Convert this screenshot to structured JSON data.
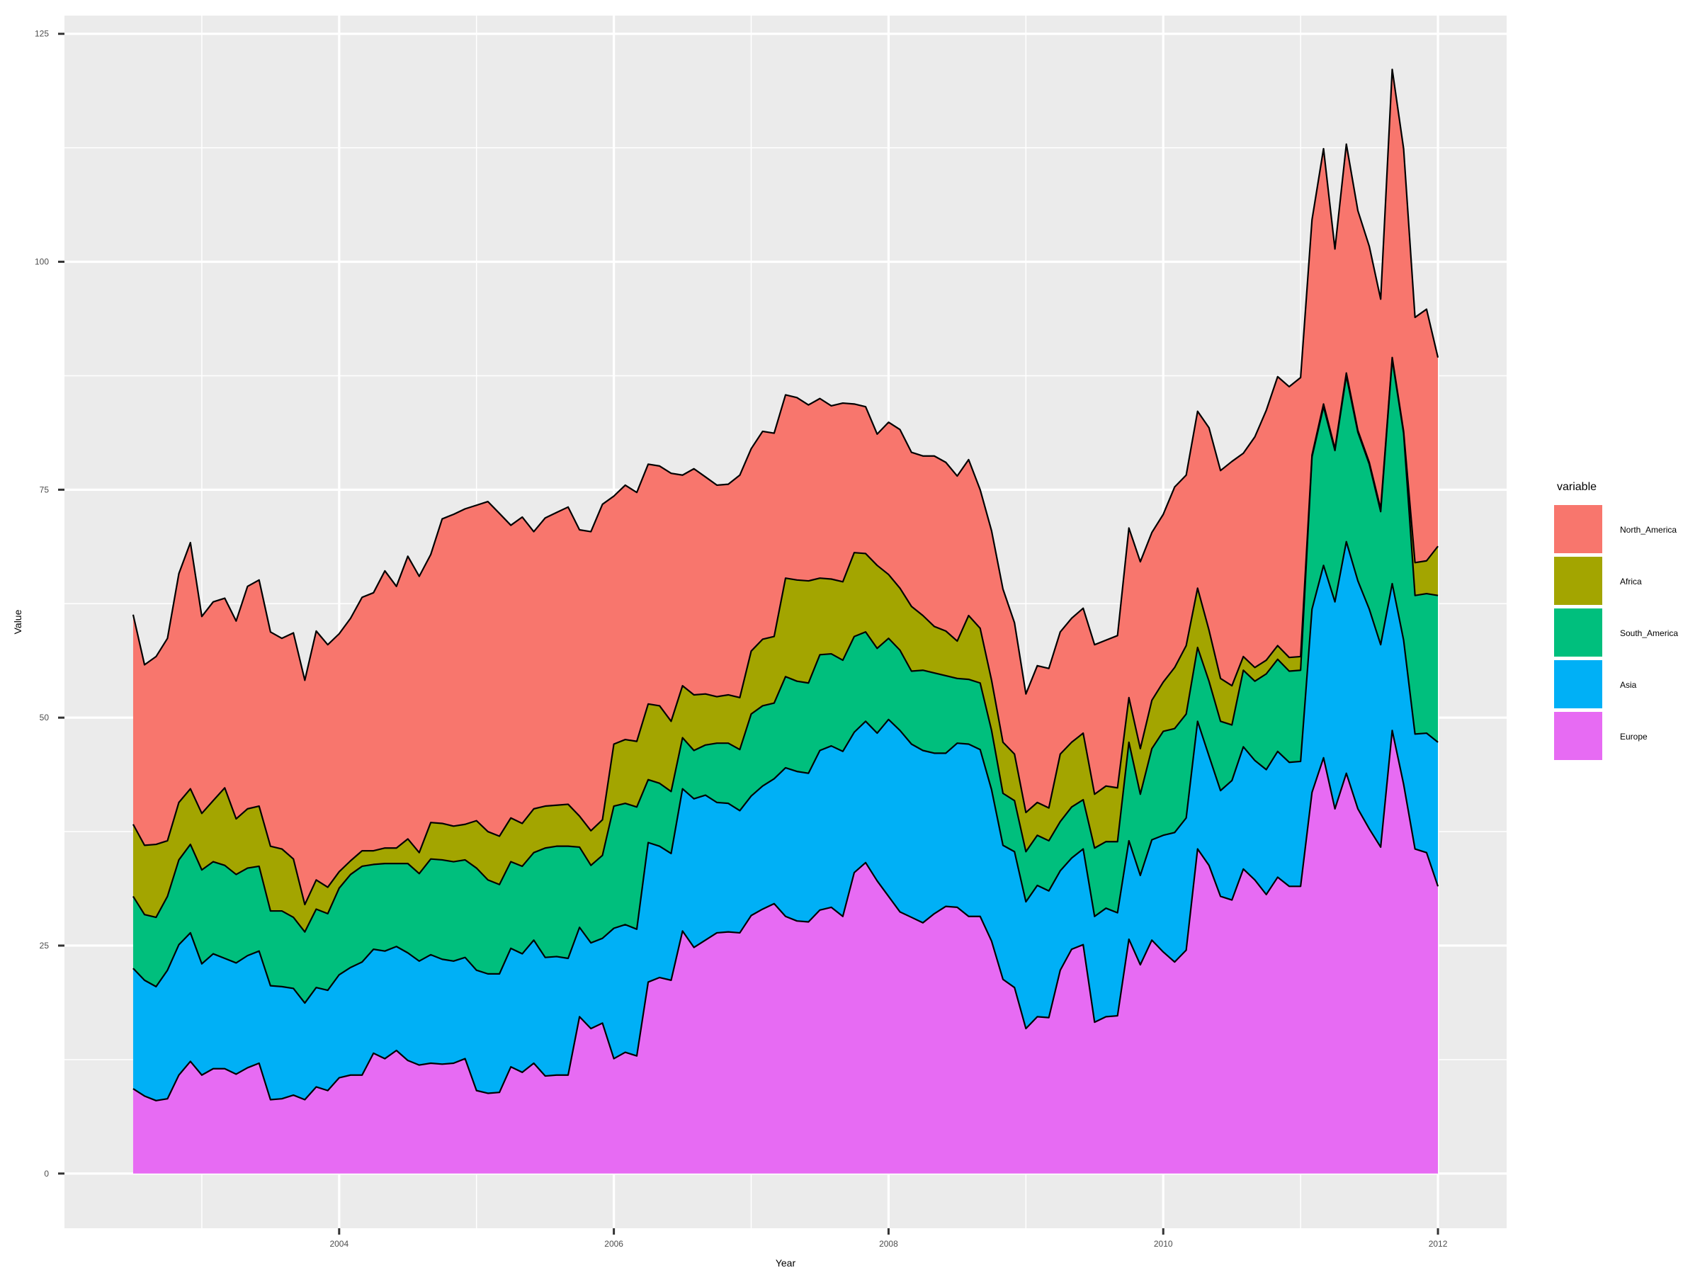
{
  "chart_data": {
    "type": "area",
    "stacked": true,
    "title": "",
    "xlabel": "Year",
    "ylabel": "Value",
    "x_ticks": [
      "2004",
      "2006",
      "2008",
      "2010",
      "2012"
    ],
    "y_ticks": [
      "0",
      "25",
      "50",
      "75",
      "100",
      "125"
    ],
    "xlim": [
      2002.0,
      2012.5
    ],
    "ylim": [
      -6,
      127
    ],
    "grid": true,
    "legend": {
      "title": "variable",
      "position": "right"
    },
    "x": [
      2002.5,
      2002.583,
      2002.667,
      2002.75,
      2002.833,
      2002.917,
      2003.0,
      2003.083,
      2003.167,
      2003.25,
      2003.333,
      2003.417,
      2003.5,
      2003.583,
      2003.667,
      2003.75,
      2003.833,
      2003.917,
      2004.0,
      2004.083,
      2004.167,
      2004.25,
      2004.333,
      2004.417,
      2004.5,
      2004.583,
      2004.667,
      2004.75,
      2004.833,
      2004.917,
      2005.0,
      2005.083,
      2005.167,
      2005.25,
      2005.333,
      2005.417,
      2005.5,
      2005.583,
      2005.667,
      2005.75,
      2005.833,
      2005.917,
      2006.0,
      2006.083,
      2006.167,
      2006.25,
      2006.333,
      2006.417,
      2006.5,
      2006.583,
      2006.667,
      2006.75,
      2006.833,
      2006.917,
      2007.0,
      2007.083,
      2007.167,
      2007.25,
      2007.333,
      2007.417,
      2007.5,
      2007.583,
      2007.667,
      2007.75,
      2007.833,
      2007.917,
      2008.0,
      2008.083,
      2008.167,
      2008.25,
      2008.333,
      2008.417,
      2008.5,
      2008.583,
      2008.667,
      2008.75,
      2008.833,
      2008.917,
      2009.0,
      2009.083,
      2009.167,
      2009.25,
      2009.333,
      2009.417,
      2009.5,
      2009.583,
      2009.667,
      2009.75,
      2009.833,
      2009.917,
      2010.0,
      2010.083,
      2010.167,
      2010.25,
      2010.333,
      2010.417,
      2010.5,
      2010.583,
      2010.667,
      2010.75,
      2010.833,
      2010.917,
      2011.0,
      2011.083,
      2011.167,
      2011.25,
      2011.333,
      2011.417,
      2011.5,
      2011.583,
      2011.667,
      2011.75,
      2011.833,
      2011.917,
      2012.0
    ],
    "series": [
      {
        "name": "Europe",
        "color": "#E76BF3",
        "values": [
          9.3,
          8.5,
          8.0,
          8.2,
          10.8,
          12.3,
          10.8,
          11.5,
          11.5,
          10.9,
          11.6,
          12.1,
          8.1,
          8.2,
          8.6,
          8.1,
          9.5,
          9.1,
          10.5,
          10.8,
          10.8,
          13.2,
          12.6,
          13.5,
          12.4,
          11.9,
          12.1,
          12.0,
          12.1,
          12.6,
          9.1,
          8.8,
          8.9,
          11.7,
          11.1,
          12.1,
          10.7,
          10.8,
          10.8,
          17.2,
          15.9,
          16.5,
          12.6,
          13.3,
          12.9,
          21.0,
          21.5,
          21.2,
          26.6,
          24.8,
          25.6,
          26.4,
          26.5,
          26.4,
          28.3,
          29.0,
          29.6,
          28.2,
          27.7,
          27.6,
          28.9,
          29.2,
          28.2,
          33.0,
          34.1,
          32.1,
          30.4,
          28.7,
          28.1,
          27.5,
          28.5,
          29.3,
          29.2,
          28.2,
          28.2,
          25.5,
          21.3,
          20.4,
          15.9,
          17.2,
          17.1,
          22.3,
          24.6,
          25.1,
          16.6,
          17.2,
          17.3,
          25.7,
          22.9,
          25.6,
          24.3,
          23.2,
          24.5,
          35.6,
          33.8,
          30.4,
          30.0,
          33.4,
          32.2,
          30.6,
          32.5,
          31.5,
          31.5,
          41.8,
          45.6,
          40.0,
          43.9,
          40.0,
          37.8,
          35.8,
          48.6,
          42.7,
          35.6,
          35.2,
          31.5
        ]
      },
      {
        "name": "Asia",
        "color": "#00B0F6",
        "values": [
          13.2,
          12.7,
          12.5,
          14.1,
          14.3,
          14.1,
          12.2,
          12.6,
          12.1,
          12.2,
          12.3,
          12.3,
          12.5,
          12.3,
          11.7,
          10.6,
          10.9,
          11.0,
          11.3,
          11.8,
          12.4,
          11.4,
          11.8,
          11.4,
          11.8,
          11.4,
          11.9,
          11.5,
          11.2,
          11.1,
          13.2,
          13.1,
          13.0,
          13.0,
          13.0,
          13.5,
          13.0,
          13.0,
          12.8,
          9.8,
          9.4,
          9.3,
          14.3,
          14.0,
          13.9,
          15.3,
          14.4,
          13.9,
          15.6,
          16.3,
          15.9,
          14.3,
          14.1,
          13.4,
          13.1,
          13.5,
          13.7,
          16.3,
          16.4,
          16.3,
          17.5,
          17.7,
          18.1,
          15.4,
          15.5,
          16.2,
          19.4,
          19.9,
          19.0,
          18.9,
          17.6,
          16.8,
          18.0,
          18.9,
          18.3,
          16.6,
          14.7,
          14.9,
          13.9,
          14.4,
          13.9,
          10.9,
          10.0,
          10.5,
          11.6,
          11.9,
          11.3,
          10.8,
          9.8,
          11.0,
          12.8,
          14.2,
          14.5,
          14.0,
          12.0,
          11.6,
          13.1,
          13.4,
          13.1,
          13.7,
          13.8,
          13.6,
          13.7,
          20.1,
          21.1,
          22.7,
          25.4,
          25.0,
          24.1,
          22.2,
          16.1,
          15.8,
          12.6,
          13.1,
          15.8
        ]
      },
      {
        "name": "South_America",
        "color": "#00BF7D",
        "values": [
          7.9,
          7.2,
          7.6,
          8.1,
          9.3,
          9.7,
          10.3,
          10.1,
          10.2,
          9.7,
          9.6,
          9.3,
          8.2,
          8.3,
          7.8,
          7.8,
          8.6,
          8.4,
          9.5,
          10.2,
          10.5,
          9.3,
          9.6,
          9.1,
          9.8,
          9.6,
          10.5,
          10.9,
          10.9,
          10.7,
          11.2,
          10.3,
          9.8,
          9.5,
          9.6,
          9.6,
          12.0,
          12.1,
          12.3,
          8.8,
          8.5,
          9.1,
          13.4,
          13.3,
          13.4,
          6.9,
          6.9,
          6.8,
          5.6,
          5.3,
          5.5,
          6.5,
          6.6,
          6.7,
          9.0,
          8.8,
          8.3,
          10.0,
          9.9,
          9.9,
          10.5,
          10.1,
          10.0,
          10.5,
          9.8,
          9.3,
          8.9,
          8.8,
          8.0,
          8.8,
          8.8,
          8.5,
          7.1,
          7.1,
          7.3,
          6.5,
          5.7,
          5.6,
          5.5,
          5.5,
          5.5,
          5.4,
          5.6,
          5.4,
          7.5,
          7.3,
          7.8,
          10.8,
          8.9,
          10.0,
          11.4,
          11.4,
          11.4,
          8.1,
          8.2,
          7.6,
          6.1,
          8.4,
          8.7,
          10.5,
          10.1,
          10.0,
          10.0,
          16.7,
          17.4,
          16.6,
          18.2,
          16.3,
          15.9,
          14.6,
          24.6,
          22.7,
          15.2,
          15.3,
          16.1
        ]
      },
      {
        "name": "Africa",
        "color": "#A3A500",
        "values": [
          7.9,
          7.6,
          8.0,
          6.1,
          6.3,
          6.1,
          6.2,
          6.7,
          8.5,
          6.1,
          6.5,
          6.6,
          7.1,
          6.8,
          6.4,
          3.0,
          3.2,
          2.9,
          1.8,
          1.5,
          1.7,
          1.5,
          1.7,
          1.7,
          2.7,
          2.3,
          4.0,
          4.0,
          3.9,
          3.9,
          5.2,
          5.3,
          5.3,
          4.8,
          4.7,
          4.8,
          4.6,
          4.5,
          4.6,
          3.4,
          3.8,
          3.9,
          6.8,
          7.0,
          7.2,
          8.3,
          8.5,
          7.7,
          5.7,
          6.1,
          5.6,
          5.1,
          5.3,
          5.7,
          6.9,
          7.3,
          7.3,
          10.8,
          11.1,
          11.2,
          8.4,
          8.2,
          8.6,
          9.2,
          8.6,
          9.1,
          7.0,
          6.8,
          7.1,
          6.0,
          5.1,
          4.9,
          4.1,
          7.0,
          6.0,
          5.5,
          5.6,
          5.1,
          4.3,
          3.6,
          3.6,
          7.4,
          7.1,
          7.3,
          5.9,
          6.1,
          5.9,
          4.9,
          5.0,
          5.3,
          5.4,
          6.7,
          7.5,
          6.5,
          5.6,
          4.7,
          4.3,
          1.5,
          1.5,
          1.5,
          1.5,
          1.5,
          1.5,
          0.2,
          0.3,
          0.2,
          0.3,
          0.2,
          0.2,
          0.3,
          0.2,
          0.2,
          3.6,
          3.6,
          5.4
        ]
      },
      {
        "name": "North_America",
        "color": "#F8766D",
        "values": [
          23.0,
          19.8,
          20.6,
          22.2,
          25.1,
          27.0,
          21.6,
          21.8,
          20.8,
          21.7,
          24.4,
          24.8,
          23.5,
          23.1,
          24.8,
          24.6,
          27.3,
          26.6,
          26.1,
          26.6,
          27.8,
          28.3,
          30.4,
          28.7,
          31.0,
          30.3,
          29.4,
          33.4,
          34.2,
          34.6,
          34.6,
          36.2,
          35.4,
          32.1,
          33.6,
          30.4,
          31.6,
          32.1,
          32.6,
          31.4,
          32.8,
          34.6,
          27.2,
          27.9,
          27.3,
          26.3,
          26.3,
          27.2,
          23.1,
          24.8,
          23.8,
          23.2,
          23.1,
          24.4,
          22.2,
          22.8,
          22.3,
          20.1,
          20.0,
          19.3,
          19.7,
          19.0,
          19.6,
          16.3,
          16.1,
          14.4,
          16.7,
          17.4,
          16.9,
          17.5,
          18.7,
          18.5,
          18.1,
          17.1,
          15.2,
          16.4,
          16.8,
          14.4,
          13.0,
          15.0,
          15.3,
          13.4,
          13.6,
          13.7,
          16.4,
          16.0,
          16.7,
          18.6,
          20.5,
          18.4,
          18.4,
          19.8,
          18.7,
          19.4,
          22.2,
          22.8,
          24.6,
          22.3,
          25.3,
          27.4,
          29.5,
          29.7,
          30.6,
          25.8,
          28.0,
          21.9,
          25.1,
          24.1,
          23.7,
          23.0,
          31.6,
          31.0,
          26.9,
          27.6,
          20.7
        ]
      }
    ]
  }
}
